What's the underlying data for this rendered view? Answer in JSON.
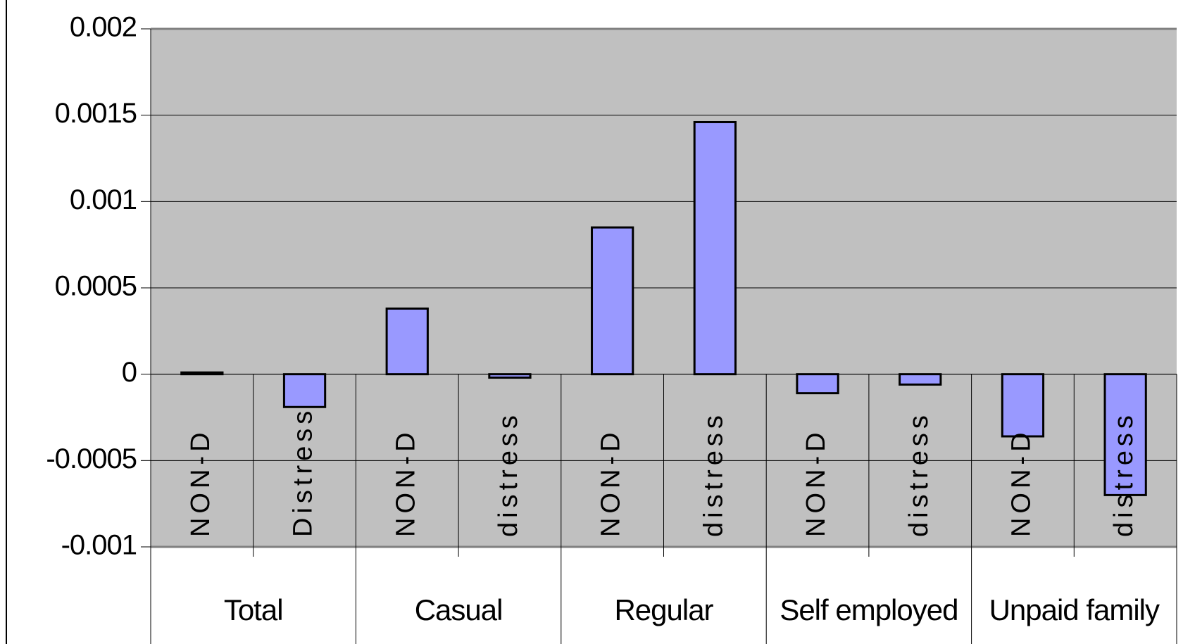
{
  "chart_data": {
    "type": "bar",
    "categories": [
      "NON-D",
      "Distress",
      "NON-D",
      "distress",
      "NON-D",
      "distress",
      "NON-D",
      "distress",
      "NON-D",
      "distress"
    ],
    "groups": [
      "Total",
      "Casual",
      "Regular",
      "Self employed",
      "Unpaid family"
    ],
    "values": [
      1e-05,
      -0.00019,
      0.00038,
      -2e-05,
      0.00085,
      0.00146,
      -0.00011,
      -6e-05,
      -0.00036,
      -0.0007
    ],
    "color": "#9999ff",
    "ylim": [
      -0.001,
      0.002
    ],
    "yticks": [
      -0.001,
      -0.0005,
      0,
      0.0005,
      0.001,
      0.0015,
      0.002
    ],
    "grid": true
  }
}
